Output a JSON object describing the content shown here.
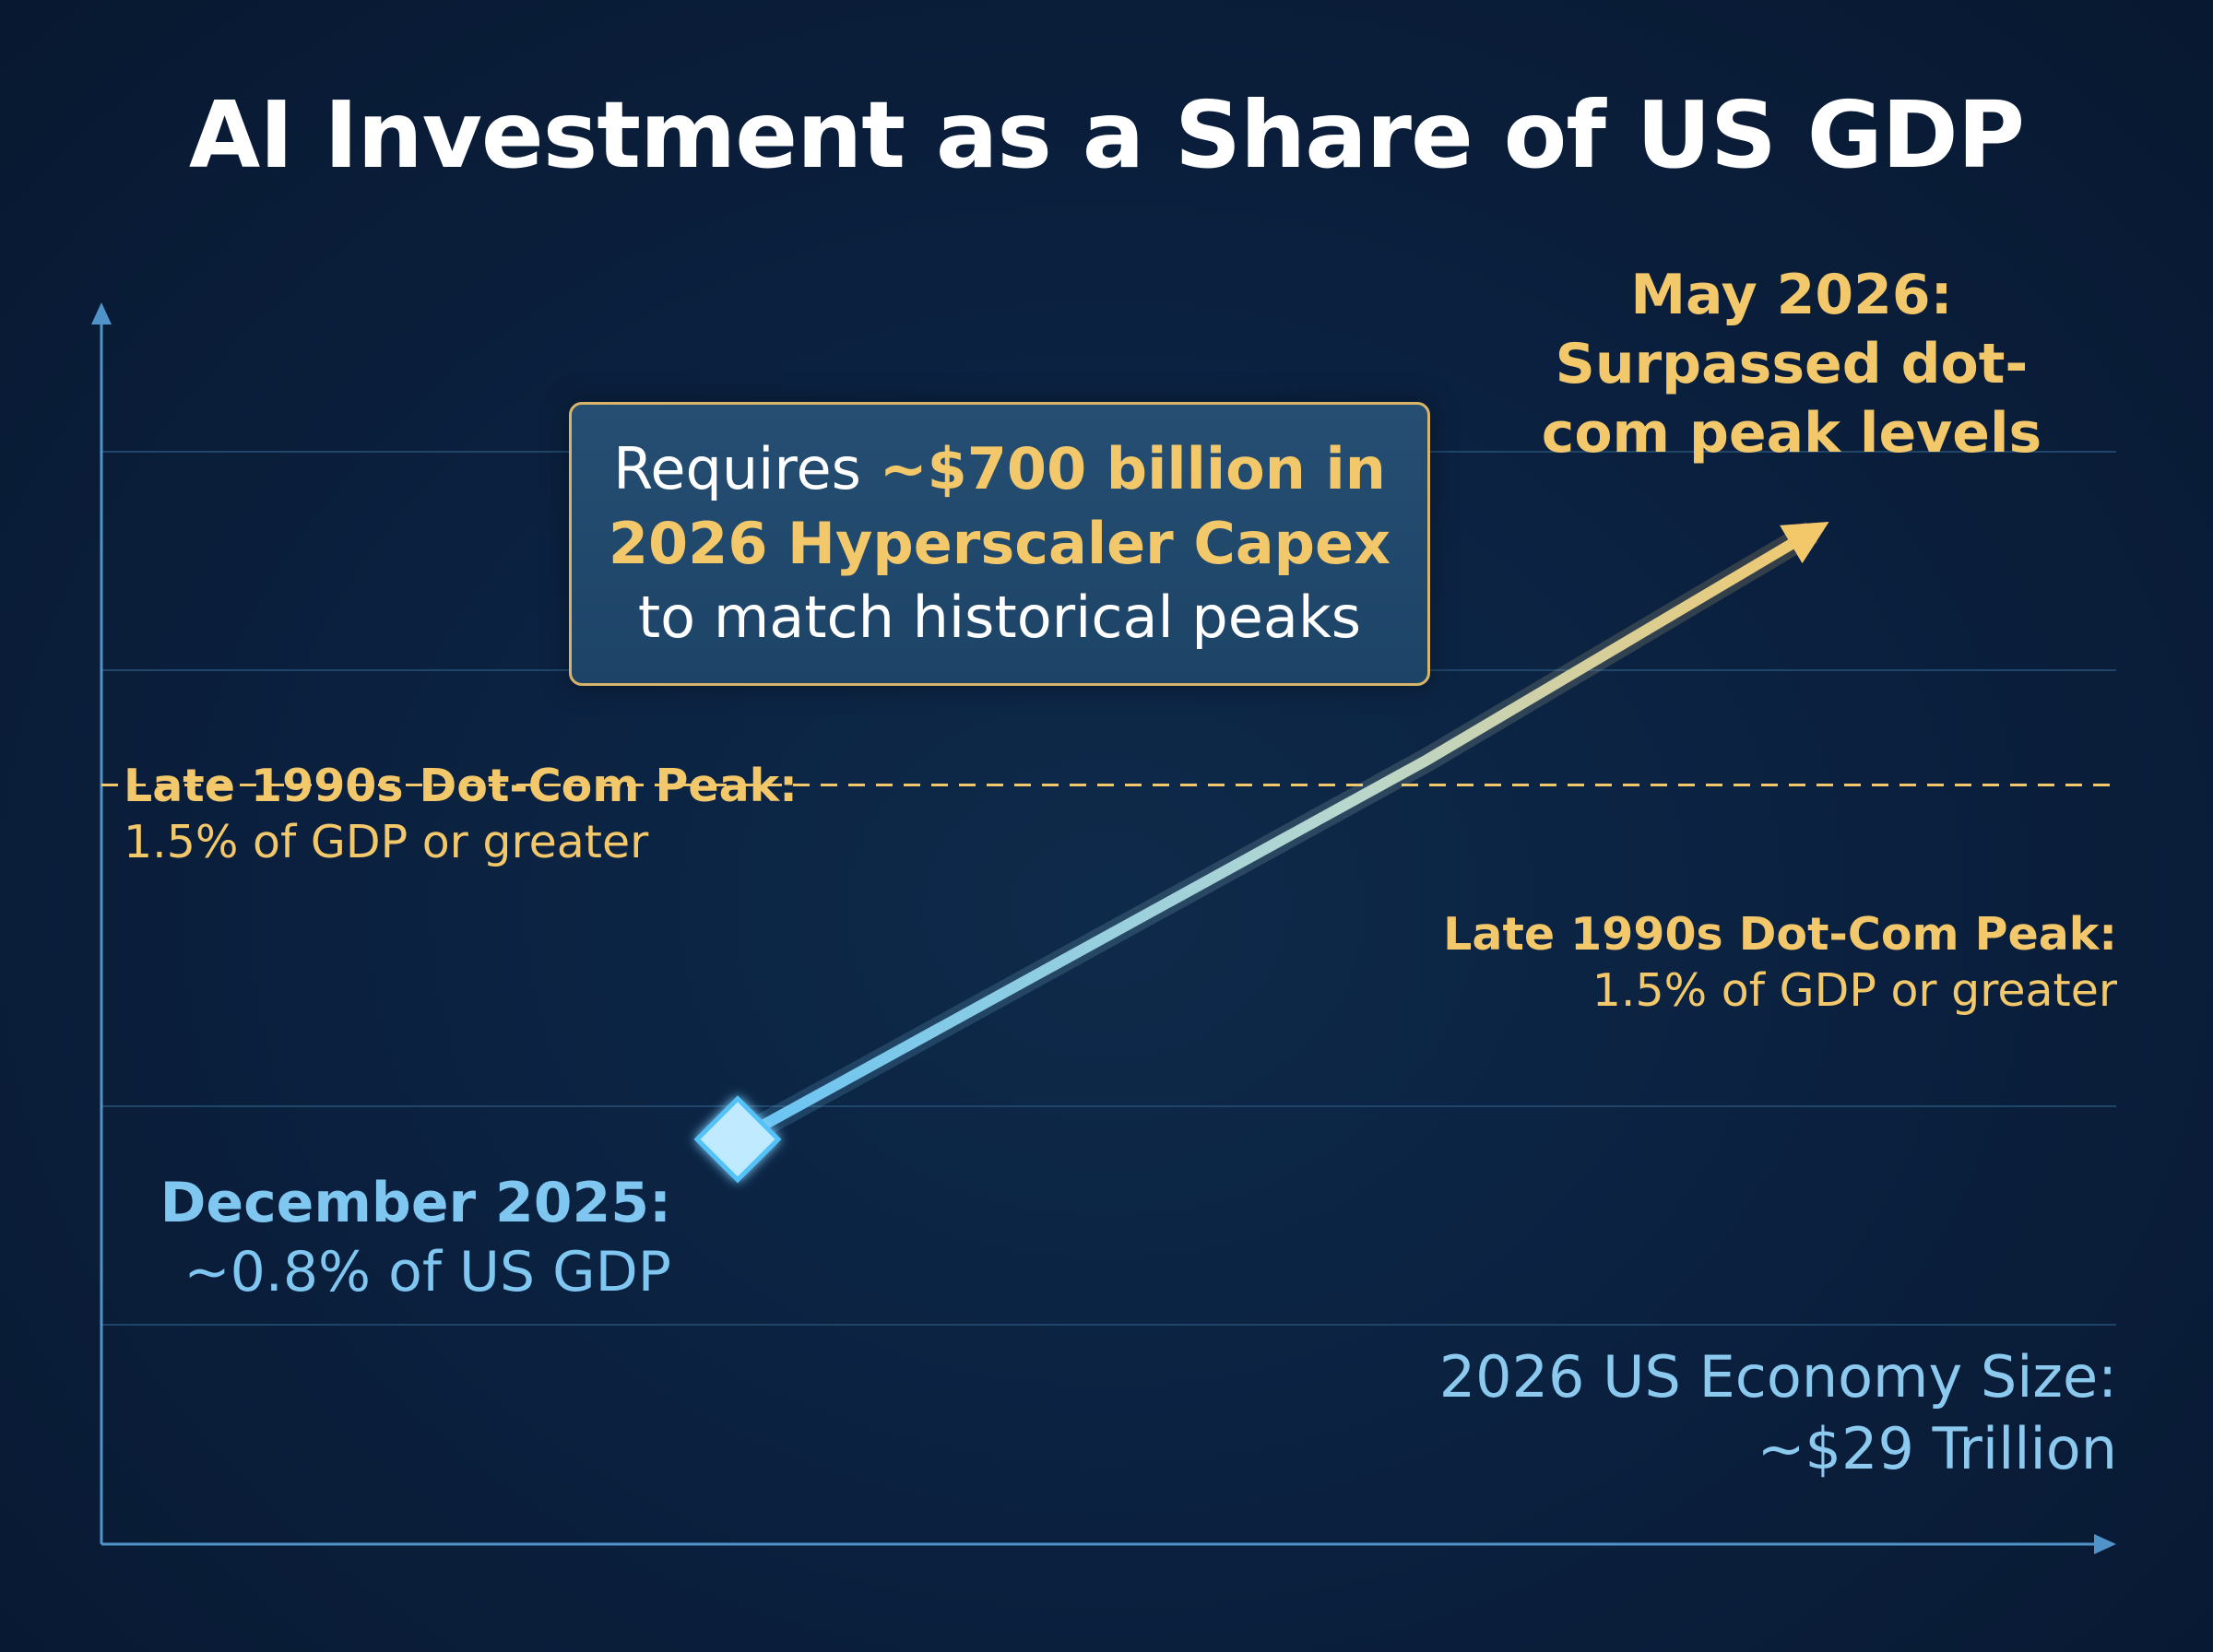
{
  "title": "AI Investment as a Share of US GDP",
  "callout": {
    "prefix": "Requires ",
    "highlight": "~$700 billion in 2026 Hyperscaler Capex",
    "suffix": " to match historical peaks"
  },
  "annotations": {
    "peak_left": {
      "title": "Late 1990s Dot-Com Peak:",
      "text": "1.5% of GDP or greater"
    },
    "peak_right": {
      "title": "Late 1990s Dot-Com Peak:",
      "text": "1.5% of GDP or greater"
    },
    "december": {
      "title": "December 2025:",
      "text": "~0.8% of US GDP"
    },
    "may": {
      "title": "May 2026:",
      "text": "Surpassed dot-com peak levels"
    },
    "economy": {
      "line1": "2026 US Economy Size:",
      "line2": "~$29 Trillion"
    }
  },
  "colors": {
    "background": "#0b2140",
    "axis": "#4f93c9",
    "gridline": "#1f4569",
    "gold": "#f3c86a",
    "blue": "#7fc6f0",
    "marker": "#bfeaff"
  },
  "chart_data": {
    "type": "line",
    "title": "AI Investment as a Share of US GDP",
    "xlabel": "",
    "ylabel": "",
    "grid": true,
    "legend": "none",
    "reference_line": {
      "label": "Late 1990s Dot-Com Peak",
      "value": 1.5
    },
    "series": [
      {
        "x": [
          "December 2025",
          "",
          "May 2026"
        ],
        "y": [
          0.8,
          1.55,
          2.0
        ]
      }
    ],
    "y_domain": [
      0.0,
      2.45
    ]
  }
}
